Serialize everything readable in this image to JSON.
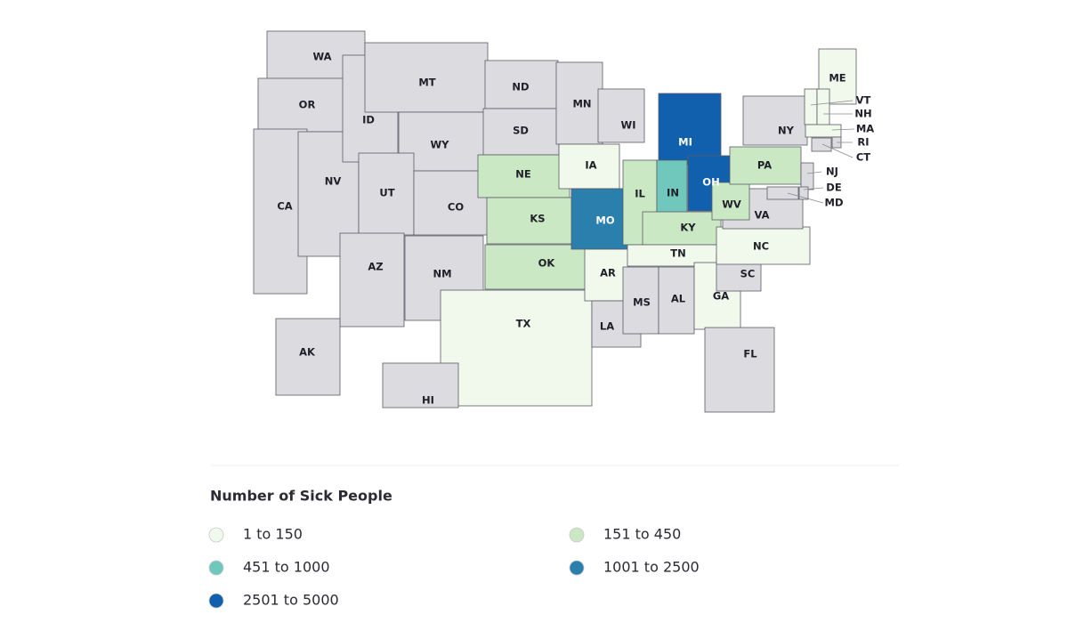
{
  "map": {
    "states": [
      {
        "label": "WA",
        "color": "#dcdce0"
      },
      {
        "label": "OR",
        "color": "#dcdce0"
      },
      {
        "label": "CA",
        "color": "#dcdce0"
      },
      {
        "label": "NV",
        "color": "#dcdce0"
      },
      {
        "label": "ID",
        "color": "#dcdce0"
      },
      {
        "label": "MT",
        "color": "#dcdce0"
      },
      {
        "label": "WY",
        "color": "#dcdce0"
      },
      {
        "label": "UT",
        "color": "#dcdce0"
      },
      {
        "label": "AZ",
        "color": "#dcdce0"
      },
      {
        "label": "CO",
        "color": "#dcdce0"
      },
      {
        "label": "NM",
        "color": "#dcdce0"
      },
      {
        "label": "ND",
        "color": "#dcdce0"
      },
      {
        "label": "SD",
        "color": "#dcdce0"
      },
      {
        "label": "NE",
        "color": "#cbe8c4"
      },
      {
        "label": "KS",
        "color": "#cbe8c4"
      },
      {
        "label": "OK",
        "color": "#cbe8c4"
      },
      {
        "label": "TX",
        "color": "#f1f8ec"
      },
      {
        "label": "MN",
        "color": "#dcdce0"
      },
      {
        "label": "IA",
        "color": "#f1f8ec"
      },
      {
        "label": "MO",
        "color": "#2a7fad"
      },
      {
        "label": "AR",
        "color": "#f1f8ec"
      },
      {
        "label": "LA",
        "color": "#dcdce0"
      },
      {
        "label": "WI",
        "color": "#dcdce0"
      },
      {
        "label": "IL",
        "color": "#cbe8c4"
      },
      {
        "label": "MI",
        "color": "#1060ae"
      },
      {
        "label": "IN",
        "color": "#70c8bd"
      },
      {
        "label": "OH",
        "color": "#1060ae"
      },
      {
        "label": "KY",
        "color": "#cbe8c4"
      },
      {
        "label": "TN",
        "color": "#f1f8ec"
      },
      {
        "label": "MS",
        "color": "#dcdce0"
      },
      {
        "label": "AL",
        "color": "#dcdce0"
      },
      {
        "label": "GA",
        "color": "#f1f8ec"
      },
      {
        "label": "FL",
        "color": "#dcdce0"
      },
      {
        "label": "SC",
        "color": "#dcdce0"
      },
      {
        "label": "NC",
        "color": "#f1f8ec"
      },
      {
        "label": "VA",
        "color": "#dcdce0"
      },
      {
        "label": "WV",
        "color": "#cbe8c4"
      },
      {
        "label": "PA",
        "color": "#cbe8c4"
      },
      {
        "label": "NY",
        "color": "#dcdce0"
      },
      {
        "label": "ME",
        "color": "#f1f8ec"
      },
      {
        "label": "VT",
        "color": "#f1f8ec"
      },
      {
        "label": "NH",
        "color": "#f1f8ec"
      },
      {
        "label": "MA",
        "color": "#f1f8ec"
      },
      {
        "label": "RI",
        "color": "#dcdce0"
      },
      {
        "label": "CT",
        "color": "#dcdce0"
      },
      {
        "label": "NJ",
        "color": "#dcdce0"
      },
      {
        "label": "DE",
        "color": "#dcdce0"
      },
      {
        "label": "MD",
        "color": "#dcdce0"
      },
      {
        "label": "AK",
        "color": "#dcdce0"
      },
      {
        "label": "HI",
        "color": "#dcdce0"
      }
    ]
  },
  "legend": {
    "title": "Number of Sick People",
    "items": [
      {
        "label": "1 to 150",
        "color": "#f1f8ec"
      },
      {
        "label": "151 to 450",
        "color": "#cbe8c4"
      },
      {
        "label": "451 to 1000",
        "color": "#70c8bd"
      },
      {
        "label": "1001 to 2500",
        "color": "#2a7fad"
      },
      {
        "label": "2501 to 5000",
        "color": "#1060ae"
      }
    ]
  }
}
